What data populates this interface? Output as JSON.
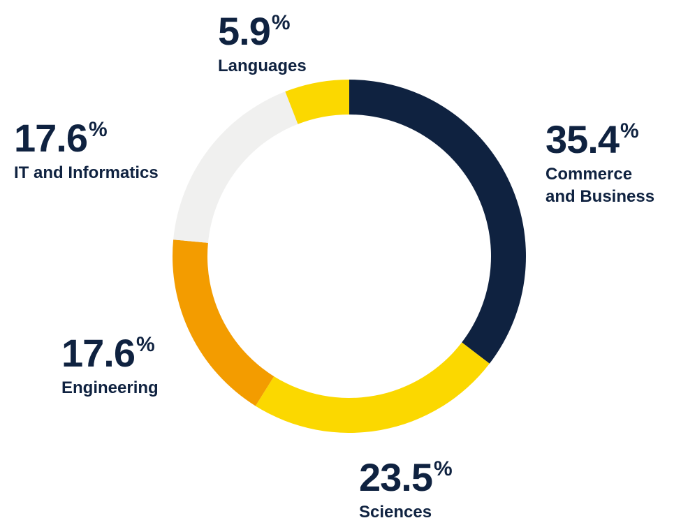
{
  "chart_data": {
    "type": "pie",
    "style": "donut",
    "slices": [
      {
        "label_lines": [
          "Commerce",
          "and Business"
        ],
        "value": 35.4,
        "display": "35.4",
        "color": "#0f2240"
      },
      {
        "label_lines": [
          "Sciences"
        ],
        "value": 23.5,
        "display": "23.5",
        "color": "#fbd800"
      },
      {
        "label_lines": [
          "Engineering"
        ],
        "value": 17.6,
        "display": "17.6",
        "color": "#f39c00"
      },
      {
        "label_lines": [
          "IT and Informatics"
        ],
        "value": 17.6,
        "display": "17.6",
        "color": "#f0f0ef"
      },
      {
        "label_lines": [
          "Languages"
        ],
        "value": 5.9,
        "display": "5.9",
        "color": "#fbd800"
      }
    ],
    "unit_symbol": "%",
    "legend": "none"
  }
}
